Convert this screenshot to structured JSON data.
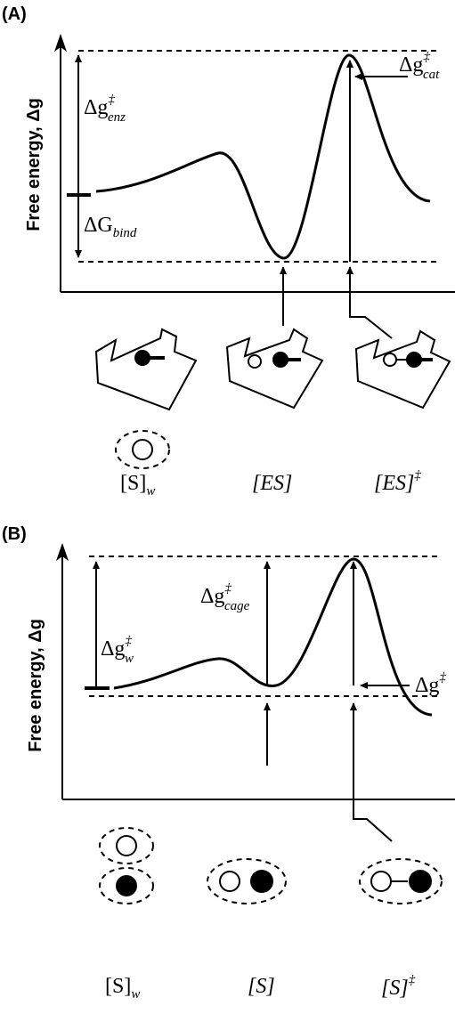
{
  "panels": [
    {
      "label": "(A)",
      "y_axis_label": "Free energy, Δg",
      "annotations": [
        {
          "symbol": "Δg",
          "sup": "‡",
          "sub": "enz"
        },
        {
          "symbol": "ΔG",
          "sub": "bind"
        },
        {
          "symbol": "Δg",
          "sup": "‡",
          "sub": "cat"
        }
      ],
      "states": [
        {
          "symbol": "[S]",
          "sub": "w"
        },
        {
          "symbol": "[ES]"
        },
        {
          "symbol": "[ES]",
          "sup": "‡"
        }
      ]
    },
    {
      "label": "(B)",
      "y_axis_label": "Free energy, Δg",
      "annotations": [
        {
          "symbol": "Δg",
          "sup": "‡",
          "sub": "cage"
        },
        {
          "symbol": "Δg",
          "sup": "‡",
          "sub": "w"
        },
        {
          "symbol": "Δg",
          "sup": "‡"
        }
      ],
      "states": [
        {
          "symbol": "[S]",
          "sub": "w"
        },
        {
          "symbol": "[S]"
        },
        {
          "symbol": "[S]",
          "sup": "‡"
        }
      ]
    }
  ]
}
